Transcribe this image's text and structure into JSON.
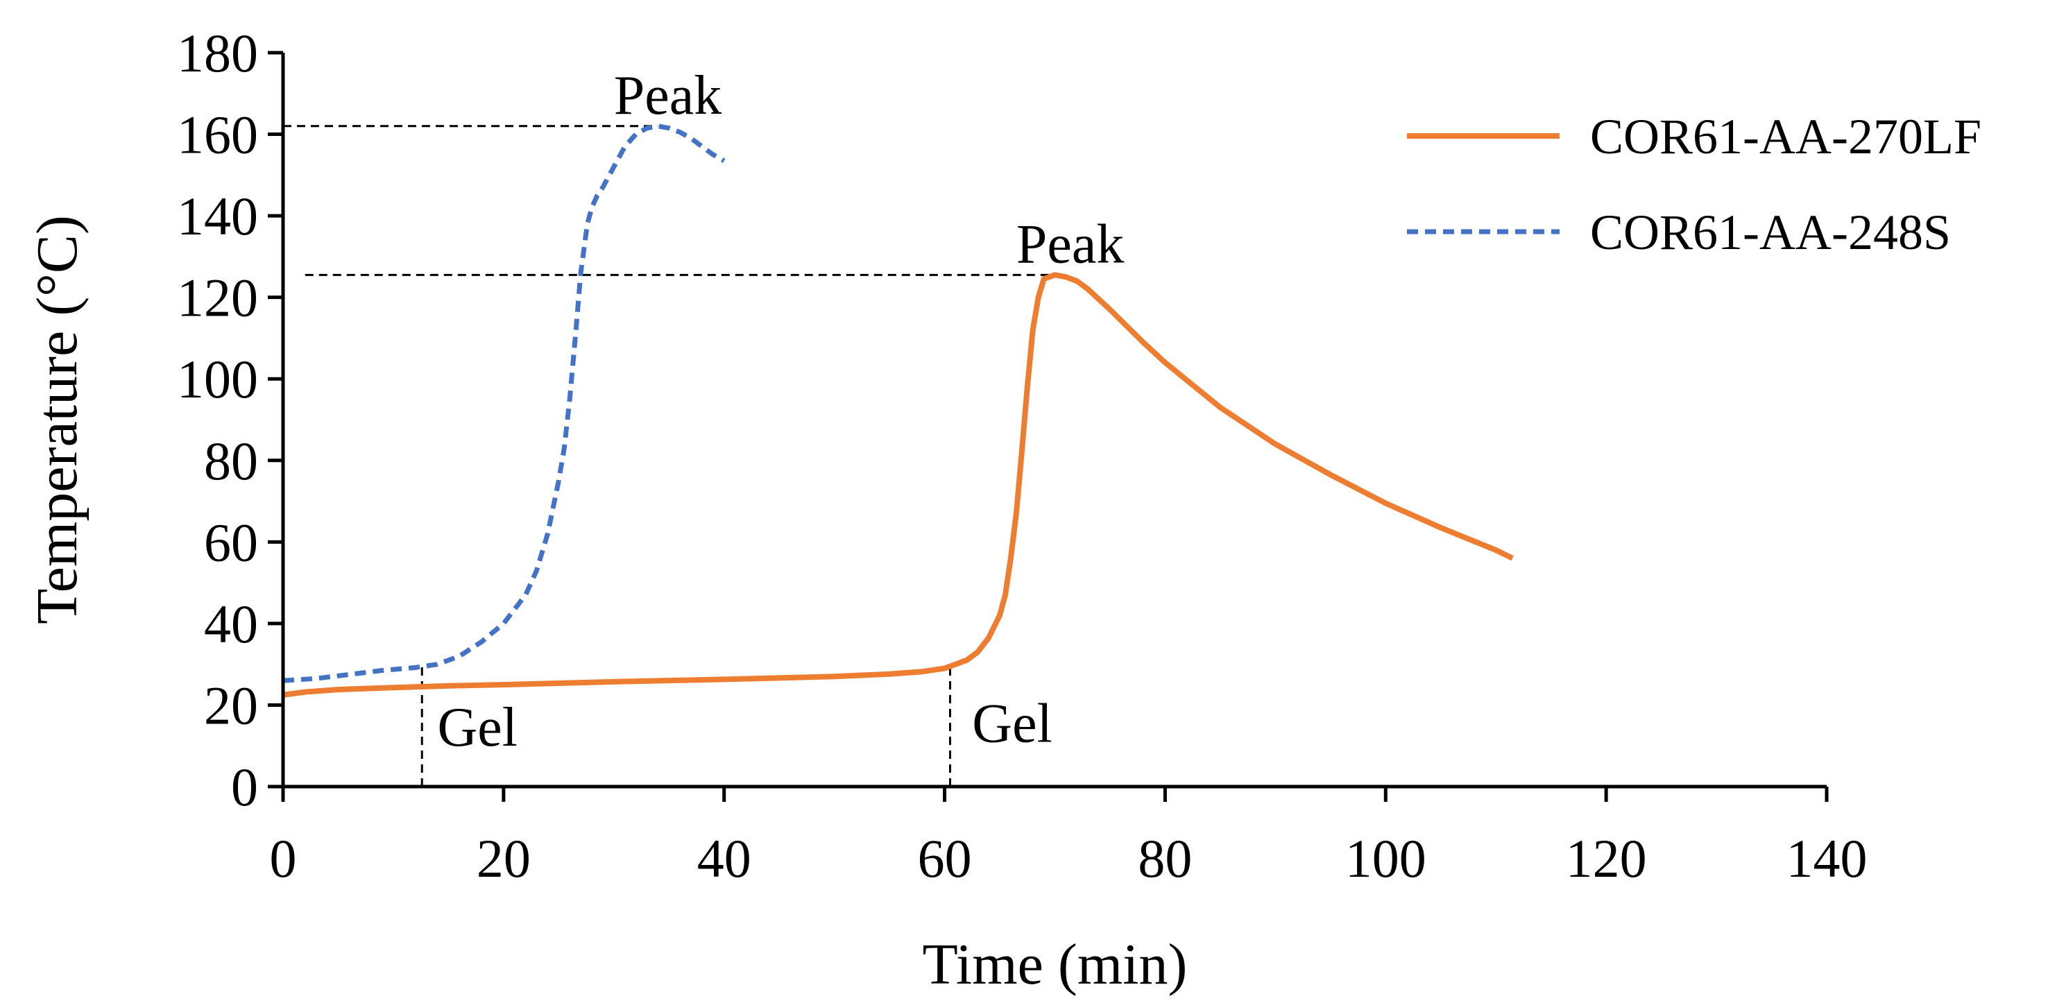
{
  "chart_data": {
    "type": "line",
    "title": "",
    "xlabel": "Time (min)",
    "ylabel": "Temperature (°C)",
    "xlim": [
      0,
      140
    ],
    "ylim": [
      0,
      180
    ],
    "xticks": [
      0,
      20,
      40,
      60,
      80,
      100,
      120,
      140
    ],
    "yticks": [
      0,
      20,
      40,
      60,
      80,
      100,
      120,
      140,
      160,
      180
    ],
    "grid": false,
    "legend_position": "top-right",
    "series": [
      {
        "name": "COR61-AA-270LF",
        "color": "#ED7D31",
        "style": "solid",
        "x": [
          0,
          2,
          5,
          10,
          15,
          20,
          30,
          40,
          50,
          55,
          58,
          60,
          62,
          63,
          64,
          65,
          65.5,
          66,
          66.5,
          67,
          67.5,
          68,
          68.5,
          69,
          70,
          71,
          72,
          73,
          75,
          78,
          80,
          85,
          90,
          95,
          100,
          105,
          110,
          111.5
        ],
        "y": [
          22.5,
          23.2,
          23.8,
          24.3,
          24.7,
          25.0,
          25.7,
          26.3,
          27.0,
          27.6,
          28.2,
          29.0,
          31.0,
          33.0,
          36.5,
          42.0,
          47.0,
          56.0,
          67.0,
          82.0,
          98.0,
          112.0,
          120.0,
          124.5,
          125.5,
          125.0,
          124.0,
          122.0,
          117.0,
          109.0,
          104.0,
          93.0,
          84.0,
          76.5,
          69.5,
          63.5,
          58.0,
          56.0
        ]
      },
      {
        "name": "COR61-AA-248S",
        "color": "#4472C4",
        "style": "dashed",
        "x": [
          0,
          3,
          6,
          9,
          12,
          14,
          16,
          18,
          20,
          22,
          23,
          24,
          25,
          25.5,
          26,
          26.5,
          27,
          27.3,
          27.6,
          28,
          28.5,
          29,
          30,
          31,
          32,
          33,
          34,
          35,
          36,
          37,
          38,
          39,
          40
        ],
        "y": [
          26.0,
          26.5,
          27.5,
          28.5,
          29.2,
          30.0,
          32.0,
          35.5,
          40.0,
          47.0,
          53.0,
          62.0,
          75.0,
          83.0,
          95.0,
          110.0,
          126.0,
          132.0,
          138.0,
          142.0,
          145.0,
          147.0,
          152.0,
          157.0,
          160.0,
          161.5,
          162.0,
          161.5,
          160.5,
          159.0,
          157.0,
          155.0,
          153.5
        ]
      }
    ],
    "annotations": [
      {
        "name": "peak-label-248s",
        "text": "Peak",
        "x": 30,
        "y": 165
      },
      {
        "name": "peak-label-270lf",
        "text": "Peak",
        "x": 66.5,
        "y": 128.5
      },
      {
        "name": "gel-label-248s",
        "text": "Gel",
        "x": 14,
        "y": 10
      },
      {
        "name": "gel-label-270lf",
        "text": "Gel",
        "x": 62.5,
        "y": 11
      }
    ],
    "reference_lines": [
      {
        "name": "peak-ref-line-248s",
        "x1": 0,
        "y1": 162,
        "x2": 34,
        "y2": 162
      },
      {
        "name": "peak-ref-line-270lf",
        "x1": 2,
        "y1": 125.5,
        "x2": 70,
        "y2": 125.5
      },
      {
        "name": "gel-ref-line-248s",
        "x1": 12.6,
        "y1": 0,
        "x2": 12.6,
        "y2": 29.5
      },
      {
        "name": "gel-ref-line-270lf",
        "x1": 60.5,
        "y1": 0,
        "x2": 60.5,
        "y2": 29
      }
    ]
  }
}
